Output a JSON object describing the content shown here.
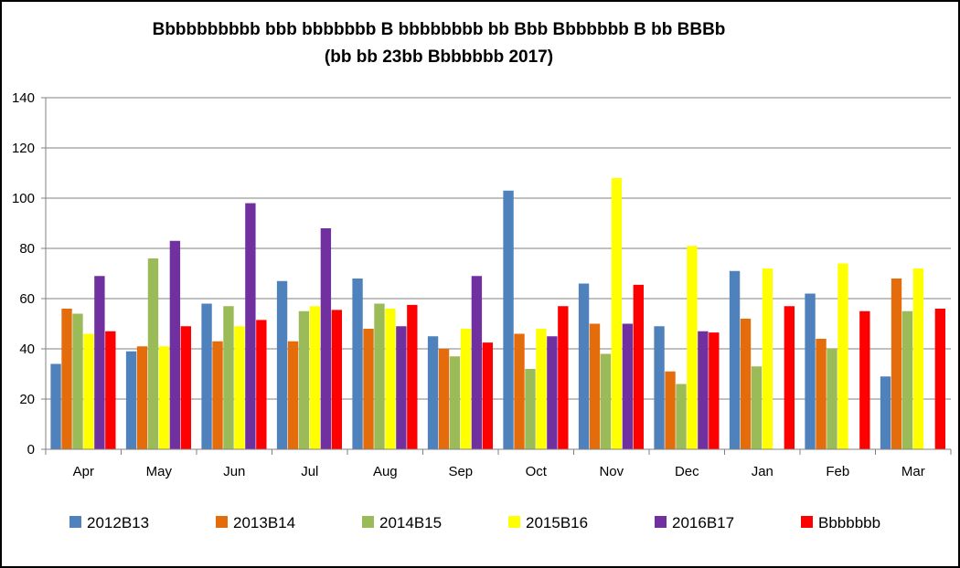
{
  "chart_data": {
    "type": "bar",
    "title": "Bbbbbbbbbb bbb bbbbbbb B bbbbbbbb bb Bbb Bbbbbbb B bb BBBb",
    "subtitle": "(bb bb 23bb Bbbbbbb 2017)",
    "xlabel": "",
    "ylabel": "",
    "ylim": [
      0,
      140
    ],
    "yticks": [
      "0",
      "20",
      "40",
      "60",
      "80",
      "100",
      "120",
      "140"
    ],
    "grid": true,
    "legend_position": "bottom",
    "categories": [
      "Apr",
      "May",
      "Jun",
      "Jul",
      "Aug",
      "Sep",
      "Oct",
      "Nov",
      "Dec",
      "Jan",
      "Feb",
      "Mar"
    ],
    "series": [
      {
        "name": "2012B13",
        "color": "#4F81BD",
        "values": [
          34,
          39,
          58,
          67,
          68,
          45,
          103,
          66,
          49,
          71,
          62,
          29
        ]
      },
      {
        "name": "2013B14",
        "color": "#E46C0A",
        "values": [
          56,
          41,
          43,
          43,
          48,
          40,
          46,
          50,
          31,
          52,
          44,
          68
        ]
      },
      {
        "name": "2014B15",
        "color": "#9BBB59",
        "values": [
          54,
          76,
          57,
          55,
          58,
          37,
          32,
          38,
          26,
          33,
          40,
          55
        ]
      },
      {
        "name": "2015B16",
        "color": "#FFFF00",
        "values": [
          46,
          41,
          49,
          57,
          56,
          48,
          48,
          108,
          81,
          72,
          74,
          72
        ]
      },
      {
        "name": "2016B17",
        "color": "#7030A0",
        "values": [
          69,
          83,
          98,
          88,
          49,
          69,
          45,
          50,
          47,
          null,
          null,
          null
        ]
      },
      {
        "name": "Bbbbbbb",
        "color": "#FF0000",
        "values": [
          47,
          49,
          51.5,
          55.5,
          57.5,
          42.5,
          57,
          65.5,
          46.5,
          57,
          55,
          56
        ]
      }
    ]
  }
}
